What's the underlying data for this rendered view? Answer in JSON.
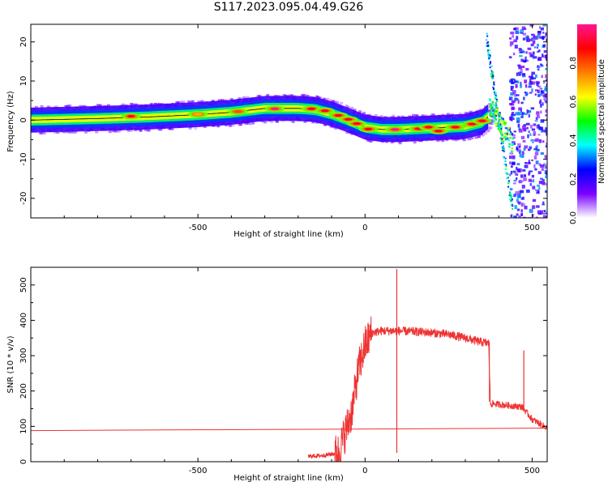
{
  "title": "S117.2023.095.04.49.G26",
  "chart_data": [
    {
      "type": "heatmap",
      "name": "spectrogram",
      "xlabel": "Height of straight line (km)",
      "ylabel": "Frequency (Hz)",
      "xlim": [
        -1000,
        545
      ],
      "ylim": [
        -25,
        24.5
      ],
      "xticks": [
        -500,
        0,
        500
      ],
      "yticks": [
        20,
        10,
        0,
        -10,
        -20
      ],
      "colorbar": {
        "label": "Normalized spectral amplitude",
        "range": [
          0,
          1
        ],
        "ticks": [
          "0.0",
          "0.2",
          "0.4",
          "0.6",
          "0.8"
        ],
        "colors": [
          "#ffffff",
          "#7a00ff",
          "#0000ff",
          "#00ffff",
          "#00ff00",
          "#ffff00",
          "#ff7f00",
          "#ff0000",
          "#ff1493"
        ]
      },
      "ridge": {
        "x": [
          -1000,
          -800,
          -650,
          -500,
          -400,
          -300,
          -200,
          -150,
          -100,
          -50,
          0,
          50,
          100,
          150,
          200,
          250,
          300,
          350,
          370
        ],
        "y": [
          0,
          0.4,
          0.8,
          1.4,
          2.0,
          3.0,
          3.0,
          2.7,
          1.6,
          0,
          -1.8,
          -2.4,
          -2.4,
          -2.2,
          -2.0,
          -1.8,
          -1.6,
          -0.5,
          1.0
        ]
      },
      "hotspots": [
        {
          "x": -700,
          "y": 1.0,
          "value": 0.9
        },
        {
          "x": -500,
          "y": 1.5,
          "value": 0.7
        },
        {
          "x": -380,
          "y": 2.2,
          "value": 0.8
        },
        {
          "x": -270,
          "y": 2.9,
          "value": 1.0
        },
        {
          "x": -160,
          "y": 2.9,
          "value": 0.9
        },
        {
          "x": -120,
          "y": 2.4,
          "value": 0.9
        },
        {
          "x": -80,
          "y": 1.2,
          "value": 0.9
        },
        {
          "x": -50,
          "y": 0.2,
          "value": 0.9
        },
        {
          "x": -25,
          "y": -0.9,
          "value": 0.9
        },
        {
          "x": 10,
          "y": -2.3,
          "value": 0.9
        },
        {
          "x": 90,
          "y": -2.4,
          "value": 1.0
        },
        {
          "x": 160,
          "y": -2.2,
          "value": 0.9
        },
        {
          "x": 190,
          "y": -1.8,
          "value": 0.9
        },
        {
          "x": 220,
          "y": -2.8,
          "value": 0.9
        },
        {
          "x": 270,
          "y": -1.8,
          "value": 0.9
        },
        {
          "x": 320,
          "y": -1.0,
          "value": 0.9
        },
        {
          "x": 350,
          "y": -0.2,
          "value": 0.9
        }
      ]
    },
    {
      "type": "line",
      "name": "snr",
      "xlabel": "Height of straight line (km)",
      "ylabel": "SNR (10 * v/v)",
      "xlim": [
        -1000,
        545
      ],
      "ylim": [
        0,
        550
      ],
      "xticks": [
        -500,
        0,
        500
      ],
      "yticks": [
        0,
        100,
        200,
        300,
        400,
        500
      ],
      "color": "#ee3333",
      "baseline": {
        "x": [
          -1000,
          545
        ],
        "y": [
          88,
          95
        ]
      },
      "series_envelope": {
        "x": [
          -170,
          -120,
          -80,
          -60,
          -40,
          -20,
          0,
          20,
          50,
          100,
          150,
          200,
          250,
          300,
          340,
          370,
          375,
          420,
          470,
          500,
          545
        ],
        "y": [
          15,
          18,
          25,
          80,
          140,
          260,
          330,
          365,
          370,
          370,
          368,
          365,
          360,
          350,
          340,
          335,
          165,
          160,
          155,
          120,
          95
        ]
      },
      "spikes": [
        {
          "x": 95,
          "y": 545
        },
        {
          "x": 95,
          "y": 25
        },
        {
          "x": 475,
          "y": 315
        }
      ]
    }
  ]
}
